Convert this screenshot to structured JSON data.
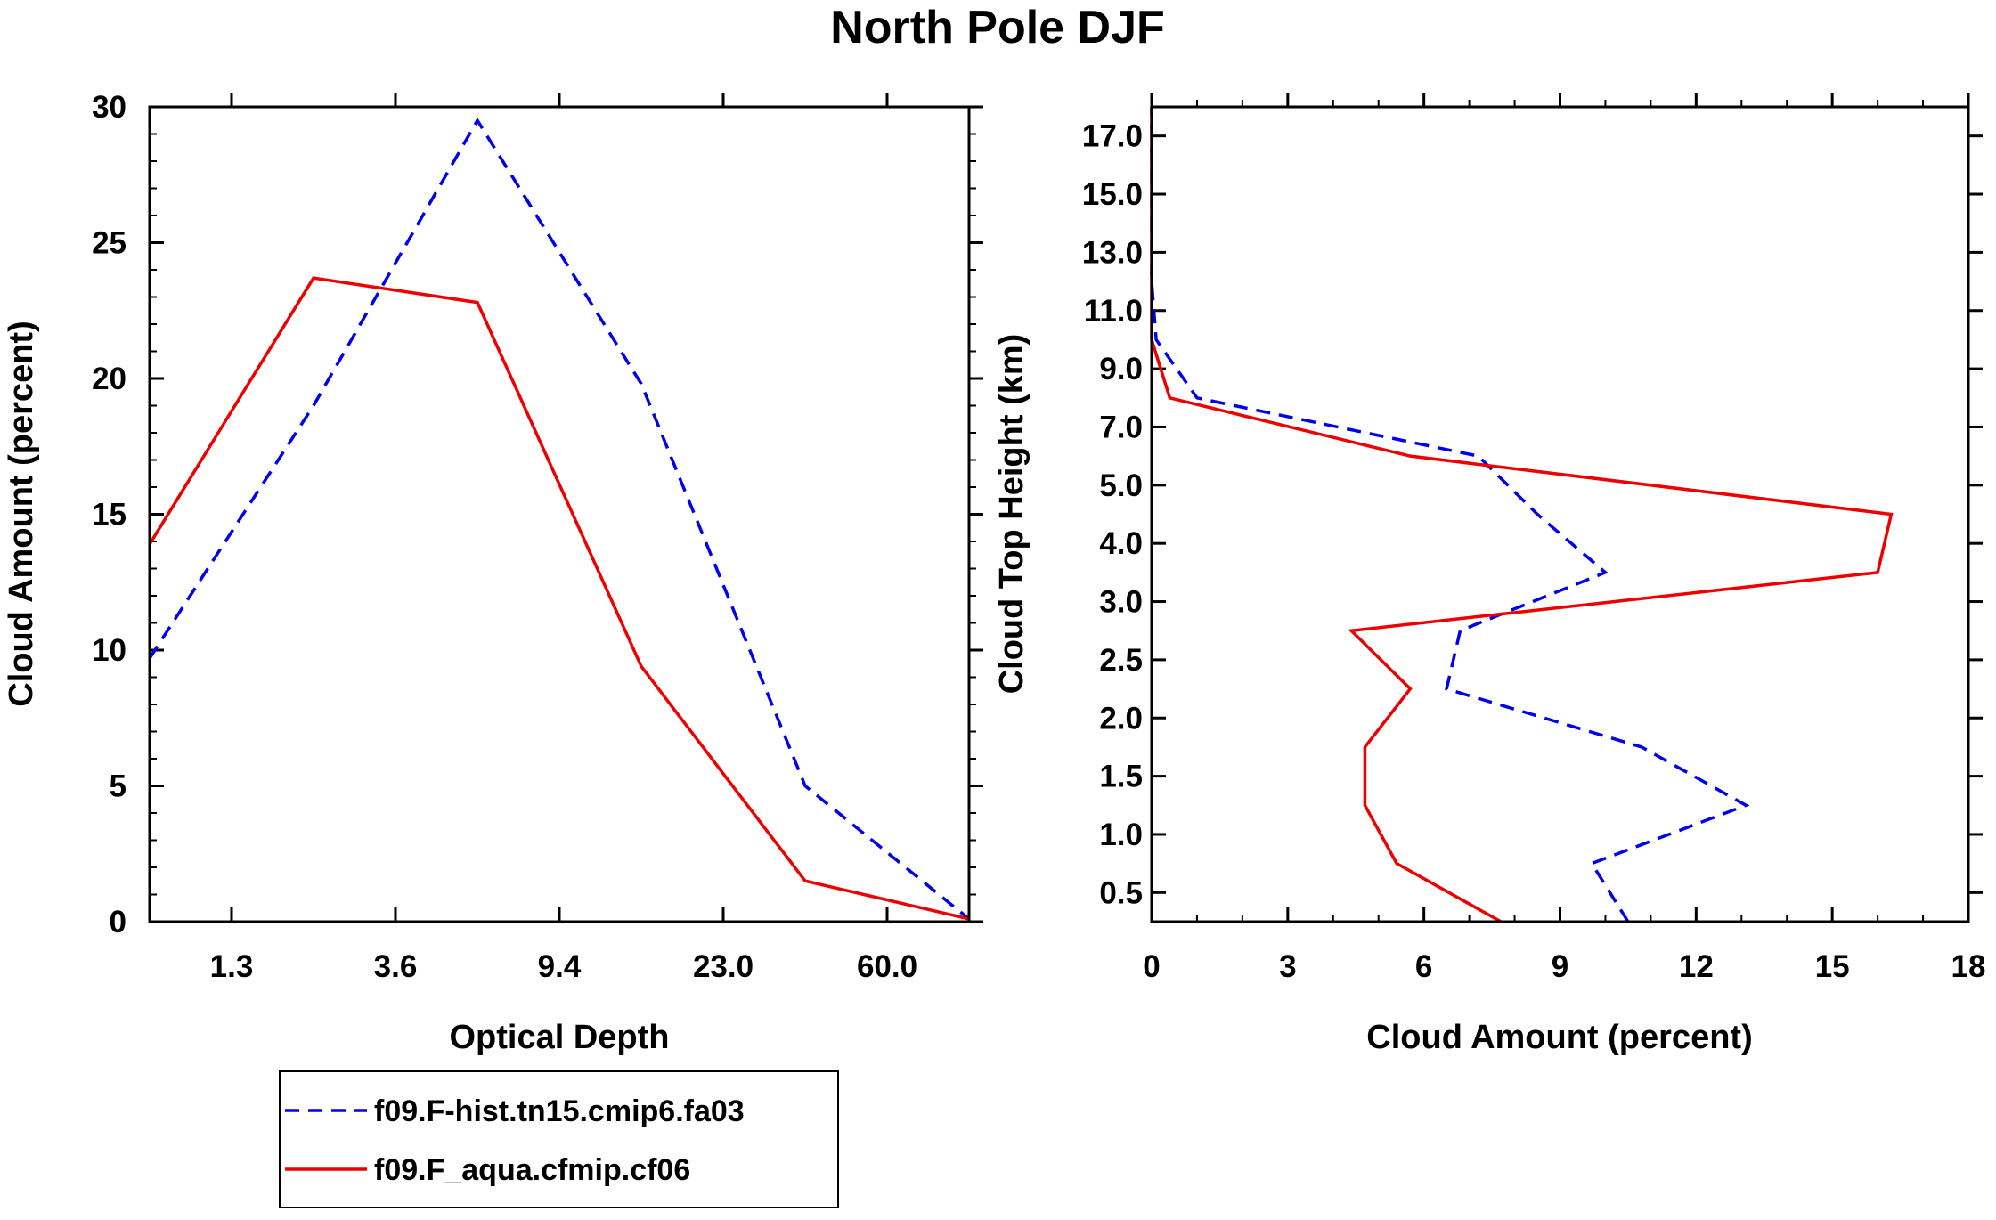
{
  "title": "North Pole DJF",
  "colors": {
    "model": "#0000ee",
    "obs": "#ee0000",
    "axis": "#000000"
  },
  "legend": {
    "items": [
      {
        "label": "f09.F-hist.tn15.cmip6.fa03",
        "style": "dashed",
        "color": "#0000ee"
      },
      {
        "label": "f09.F_aqua.cfmip.cf06",
        "style": "solid",
        "color": "#ee0000"
      }
    ]
  },
  "chart_data": [
    {
      "type": "line",
      "id": "optical-depth",
      "xlabel": "Optical Depth",
      "ylabel": "Cloud Amount (percent)",
      "xlim": [
        0,
        5
      ],
      "ylim": [
        0,
        30
      ],
      "xticks": [
        0.5,
        1.5,
        2.5,
        3.5,
        4.5
      ],
      "xtick_labels": [
        "1.3",
        "3.6",
        "9.4",
        "23.0",
        "60.0"
      ],
      "yticks": [
        0,
        5,
        10,
        15,
        20,
        25,
        30
      ],
      "ytick_labels": [
        "0",
        "5",
        "10",
        "15",
        "20",
        "25",
        "30"
      ],
      "x": [
        0,
        1,
        2,
        3,
        4,
        5
      ],
      "series": [
        {
          "name": "f09.F-hist.tn15.cmip6.fa03",
          "values": [
            9.7,
            19.0,
            29.5,
            19.8,
            5.0,
            0.1
          ]
        },
        {
          "name": "f09.F_aqua.cfmip.cf06",
          "values": [
            13.9,
            23.7,
            22.8,
            9.4,
            1.5,
            0.1
          ]
        }
      ]
    },
    {
      "type": "line",
      "id": "cloud-top-height",
      "xlabel": "Cloud Amount (percent)",
      "ylabel": "Cloud Top Height (km)",
      "xlim": [
        0,
        18
      ],
      "ylim": [
        0,
        14
      ],
      "xticks": [
        0,
        3,
        6,
        9,
        12,
        15,
        18
      ],
      "xtick_labels": [
        "0",
        "3",
        "6",
        "9",
        "12",
        "15",
        "18"
      ],
      "yticks": [
        0.5,
        1.5,
        2.5,
        3.5,
        4.5,
        5.5,
        6.5,
        7.5,
        8.5,
        9.5,
        10.5,
        11.5,
        12.5,
        13.5
      ],
      "ytick_labels": [
        "0.5",
        "1.0",
        "1.5",
        "2.0",
        "2.5",
        "3.0",
        "4.0",
        "5.0",
        "7.0",
        "9.0",
        "11.0",
        "13.0",
        "15.0",
        "17.0"
      ],
      "y": [
        0,
        1,
        2,
        3,
        4,
        5,
        6,
        7,
        8,
        9,
        10,
        11,
        12,
        13,
        14
      ],
      "series": [
        {
          "name": "f09.F-hist.tn15.cmip6.fa03",
          "values": [
            10.5,
            9.7,
            13.1,
            10.8,
            6.5,
            6.8,
            10.0,
            8.5,
            7.2,
            1.0,
            0.1,
            0.0,
            0.0,
            0.0,
            0.0
          ]
        },
        {
          "name": "f09.F_aqua.cfmip.cf06",
          "values": [
            7.7,
            5.4,
            4.7,
            4.7,
            5.7,
            4.4,
            16.0,
            16.3,
            5.7,
            0.4,
            0.0,
            0.0,
            0.0,
            0.0,
            0.0
          ]
        }
      ]
    }
  ]
}
